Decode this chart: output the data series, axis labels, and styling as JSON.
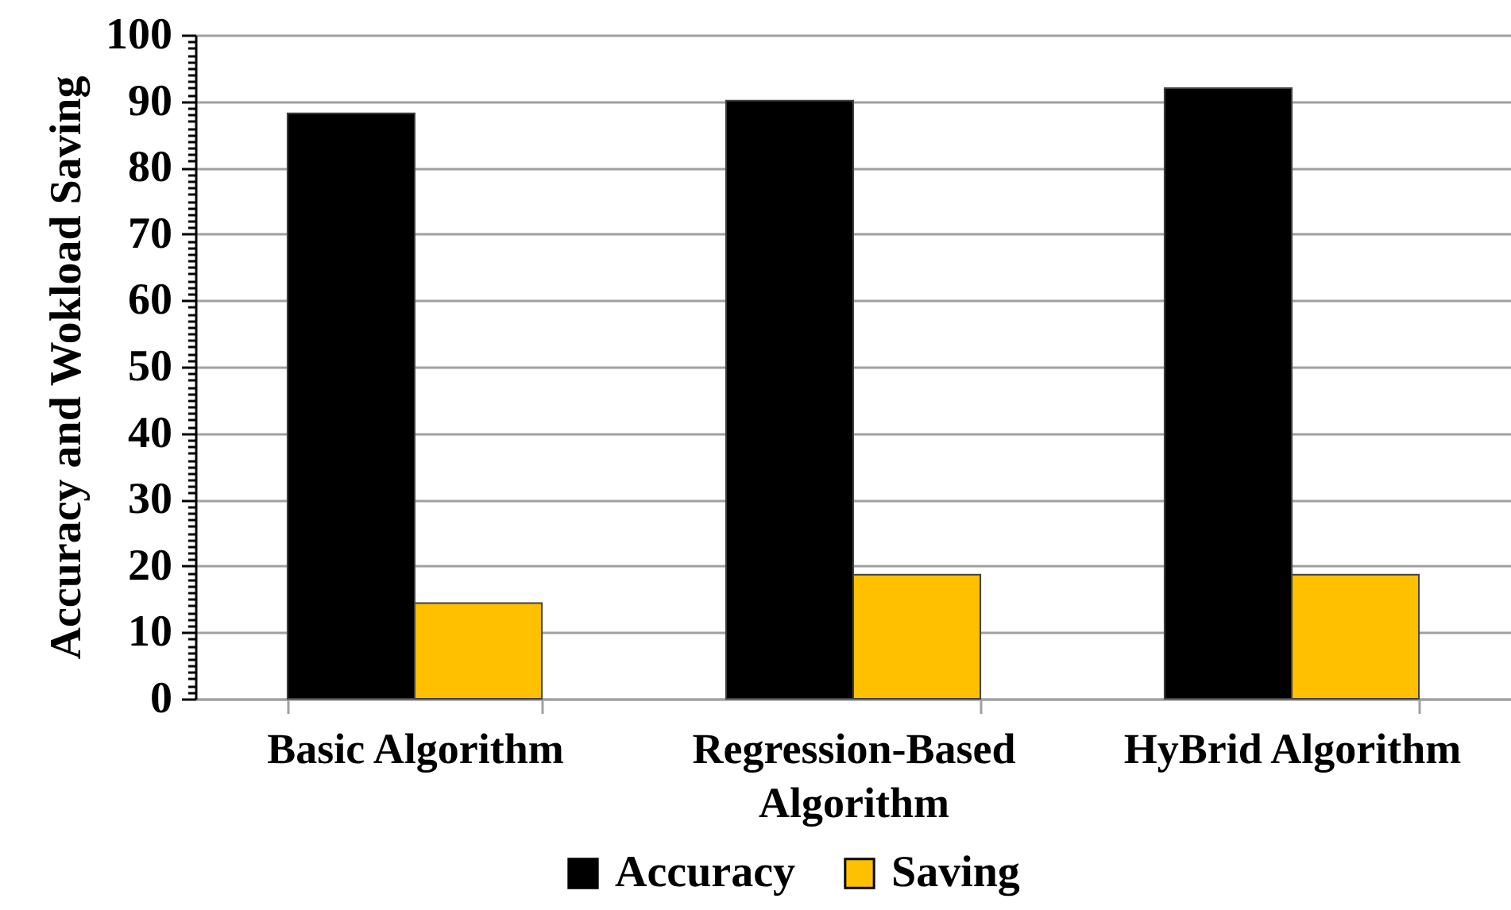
{
  "chart_data": {
    "type": "bar",
    "ylabel": "Accuracy and Wokload Saving",
    "categories": [
      "Basic Algorithm",
      "Regression-Based Algorithm",
      "HyBrid Algorithm"
    ],
    "series": [
      {
        "name": "Accuracy",
        "color": "#000000",
        "values": [
          88.2,
          90.1,
          92.0
        ]
      },
      {
        "name": "Saving",
        "color": "#ffc000",
        "values": [
          14.4,
          18.7,
          18.7
        ]
      }
    ],
    "ylim": [
      0,
      100
    ],
    "yticks": [
      0,
      {
        "value": 1,
        "label": null
      },
      {
        "value": 2,
        "label": null
      },
      {
        "value": 3,
        "label": null
      },
      {
        "value": 4,
        "label": null
      },
      {
        "value": 5,
        "label": null
      },
      {
        "value": 6,
        "label": null
      },
      {
        "value": 7,
        "label": null
      },
      {
        "value": 8,
        "label": null
      },
      {
        "value": 9,
        "label": null
      },
      10,
      {
        "value": 11,
        "label": null
      },
      {
        "value": 12,
        "label": null
      },
      {
        "value": 13,
        "label": null
      },
      {
        "value": 14,
        "label": null
      },
      {
        "value": 15,
        "label": null
      },
      {
        "value": 16,
        "label": null
      },
      {
        "value": 17,
        "label": null
      },
      {
        "value": 18,
        "label": null
      },
      {
        "value": 19,
        "label": null
      },
      20,
      {
        "value": 21,
        "label": null
      },
      {
        "value": 22,
        "label": null
      },
      {
        "value": 23,
        "label": null
      },
      {
        "value": 24,
        "label": null
      },
      {
        "value": 25,
        "label": null
      },
      {
        "value": 26,
        "label": null
      },
      {
        "value": 27,
        "label": null
      },
      {
        "value": 28,
        "label": null
      },
      {
        "value": 29,
        "label": null
      },
      30,
      {
        "value": 31,
        "label": null
      },
      {
        "value": 32,
        "label": null
      },
      {
        "value": 33,
        "label": null
      },
      {
        "value": 34,
        "label": null
      },
      {
        "value": 35,
        "label": null
      },
      {
        "value": 36,
        "label": null
      },
      {
        "value": 37,
        "label": null
      },
      {
        "value": 38,
        "label": null
      },
      {
        "value": 39,
        "label": null
      },
      40,
      {
        "value": 41,
        "label": null
      },
      {
        "value": 42,
        "label": null
      },
      {
        "value": 43,
        "label": null
      },
      {
        "value": 44,
        "label": null
      },
      {
        "value": 45,
        "label": null
      },
      {
        "value": 46,
        "label": null
      },
      {
        "value": 47,
        "label": null
      },
      {
        "value": 48,
        "label": null
      },
      {
        "value": 49,
        "label": null
      },
      50,
      {
        "value": 51,
        "label": null
      },
      {
        "value": 52,
        "label": null
      },
      {
        "value": 53,
        "label": null
      },
      {
        "value": 54,
        "label": null
      },
      {
        "value": 55,
        "label": null
      },
      {
        "value": 56,
        "label": null
      },
      {
        "value": 57,
        "label": null
      },
      {
        "value": 58,
        "label": null
      },
      {
        "value": 59,
        "label": null
      },
      60,
      {
        "value": 61,
        "label": null
      },
      {
        "value": 62,
        "label": null
      },
      {
        "value": 63,
        "label": null
      },
      {
        "value": 64,
        "label": null
      },
      {
        "value": 65,
        "label": null
      },
      {
        "value": 66,
        "label": null
      },
      {
        "value": 67,
        "label": null
      },
      {
        "value": 68,
        "label": null
      },
      {
        "value": 69,
        "label": null
      },
      70,
      {
        "value": 71,
        "label": null
      },
      {
        "value": 72,
        "label": null
      },
      {
        "value": 73,
        "label": null
      },
      {
        "value": 74,
        "label": null
      },
      {
        "value": 75,
        "label": null
      },
      {
        "value": 76,
        "label": null
      },
      {
        "value": 77,
        "label": null
      },
      {
        "value": 78,
        "label": null
      },
      {
        "value": 79,
        "label": null
      },
      80,
      {
        "value": 81,
        "label": null
      },
      {
        "value": 82,
        "label": null
      },
      {
        "value": 83,
        "label": null
      },
      {
        "value": 84,
        "label": null
      },
      {
        "value": 85,
        "label": null
      },
      {
        "value": 86,
        "label": null
      },
      {
        "value": 87,
        "label": null
      },
      {
        "value": 88,
        "label": null
      },
      {
        "value": 89,
        "label": null
      },
      90,
      {
        "value": 91,
        "label": null
      },
      {
        "value": 92,
        "label": null
      },
      {
        "value": 93,
        "label": null
      },
      {
        "value": 94,
        "label": null
      },
      {
        "value": 95,
        "label": null
      },
      {
        "value": 96,
        "label": null
      },
      {
        "value": 97,
        "label": null
      },
      {
        "value": 98,
        "label": null
      },
      {
        "value": 99,
        "label": null
      },
      100
    ],
    "grid": "y",
    "legend": "bottom"
  }
}
